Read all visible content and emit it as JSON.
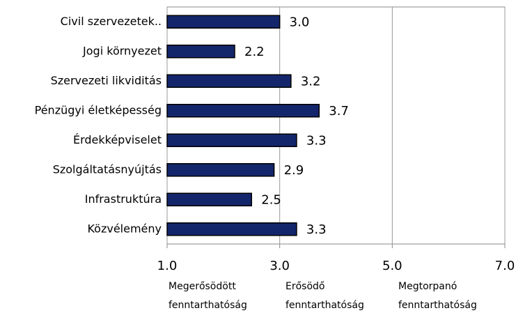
{
  "chart_data": {
    "type": "barh",
    "categories": [
      "Civil szervezetek..",
      "Jogi környezet",
      "Szervezeti likviditás",
      "Pénzügyi életképesség",
      "Érdekképviselet",
      "Szolgáltatásnyújtás",
      "Infrastruktúra",
      "Közvélemény"
    ],
    "values": [
      3,
      2.2,
      3.2,
      3.7,
      3.3,
      2.9,
      2.5,
      3.3
    ],
    "value_labels": [
      "3.0",
      "2.2",
      "3.2",
      "3.7",
      "3.3",
      "2.9",
      "2.5",
      "3.3"
    ],
    "color": "#14266b",
    "xlim": [
      1,
      7
    ],
    "xticks": [
      {
        "value": 1,
        "label": "1.0"
      },
      {
        "value": 3,
        "label": "3.0"
      },
      {
        "value": 5,
        "label": "5.0"
      },
      {
        "value": 7,
        "label": "7.0"
      }
    ],
    "grid": true,
    "annotations": [
      [
        "Megerősödött",
        "fenntarthatóság"
      ],
      [
        "Erősödő",
        "fenntarthatóság"
      ],
      [
        "Megtorpanó",
        "fenntarthatóság"
      ]
    ]
  }
}
